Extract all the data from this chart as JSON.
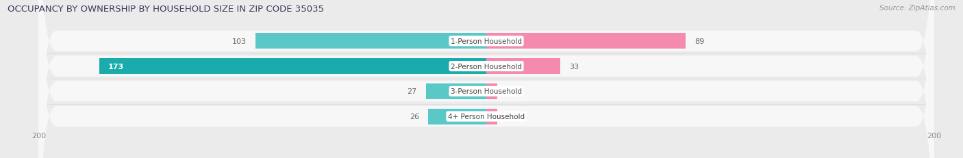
{
  "title": "OCCUPANCY BY OWNERSHIP BY HOUSEHOLD SIZE IN ZIP CODE 35035",
  "source": "Source: ZipAtlas.com",
  "categories": [
    "1-Person Household",
    "2-Person Household",
    "3-Person Household",
    "4+ Person Household"
  ],
  "owner_values": [
    103,
    173,
    27,
    26
  ],
  "renter_values": [
    89,
    33,
    0,
    0
  ],
  "owner_color_normal": "#5BC8C8",
  "owner_color_large": "#1AACAC",
  "renter_color": "#F48AAE",
  "label_color": "#666666",
  "bg_color": "#EBEBEB",
  "row_bg_color": "#F7F7F7",
  "axis_max": 200,
  "title_fontsize": 9.5,
  "source_fontsize": 7.5,
  "bar_label_fontsize": 8,
  "category_fontsize": 7.5,
  "axis_fontsize": 8,
  "legend_fontsize": 8
}
